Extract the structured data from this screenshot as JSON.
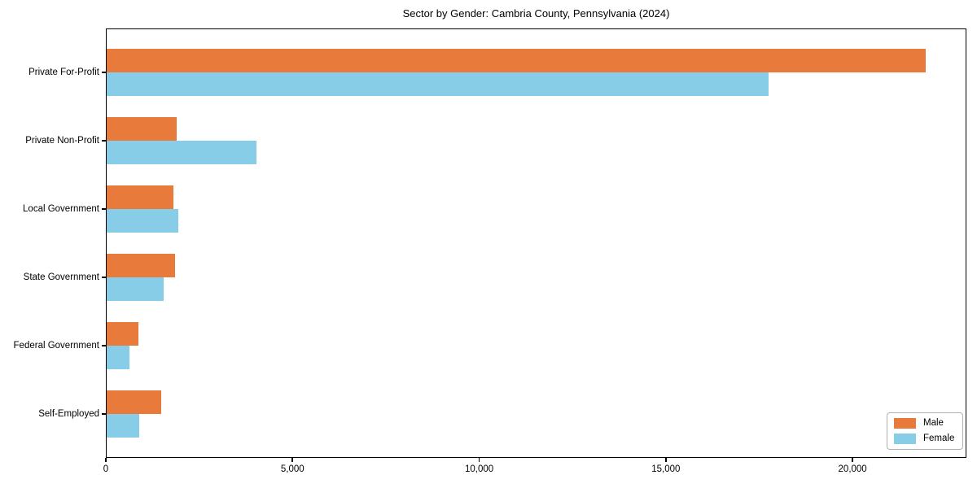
{
  "chart_data": {
    "type": "bar",
    "orientation": "horizontal",
    "title": "Sector by Gender: Cambria County, Pennsylvania (2024)",
    "categories": [
      "Private For-Profit",
      "Private Non-Profit",
      "Local Government",
      "State Government",
      "Federal Government",
      "Self-Employed"
    ],
    "series": [
      {
        "name": "Male",
        "color": "#e87a3c",
        "values": [
          21950,
          1900,
          1800,
          1850,
          870,
          1480
        ]
      },
      {
        "name": "Female",
        "color": "#88cde8",
        "values": [
          17750,
          4030,
          1950,
          1550,
          630,
          890
        ]
      }
    ],
    "xlabel": "",
    "ylabel": "",
    "xlim": [
      0,
      23050
    ],
    "x_ticks": [
      {
        "value": 0,
        "label": "0"
      },
      {
        "value": 5000,
        "label": "5,000"
      },
      {
        "value": 10000,
        "label": "10,000"
      },
      {
        "value": 15000,
        "label": "15,000"
      },
      {
        "value": 20000,
        "label": "20,000"
      }
    ],
    "legend": {
      "position": "lower right",
      "entries": [
        "Male",
        "Female"
      ]
    },
    "grid": false,
    "frame": true,
    "background": "#ffffff"
  }
}
